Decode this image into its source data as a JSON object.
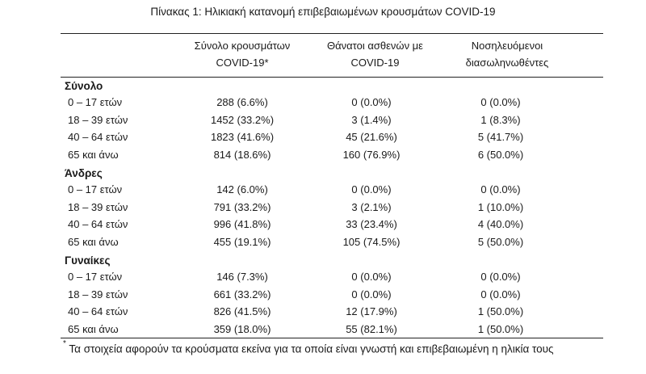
{
  "title": "Πίνακας 1: Ηλικιακή κατανομή επιβεβαιωμένων κρουσμάτων COVID-19",
  "columns": {
    "total": {
      "line1": "Σύνολο κρουσμάτων",
      "line2": "COVID-19*"
    },
    "deaths": {
      "line1": "Θάνατοι ασθενών με",
      "line2": "COVID-19"
    },
    "hospitalized": {
      "line1": "Νοσηλευόμενοι",
      "line2": "διασωληνωθέντες"
    }
  },
  "sections": [
    {
      "name": "Σύνολο",
      "rows": [
        {
          "age": "0 – 17 ετών",
          "total": "288 (6.6%)",
          "deaths": "0 (0.0%)",
          "hosp": "0 (0.0%)"
        },
        {
          "age": "18 – 39 ετών",
          "total": "1452 (33.2%)",
          "deaths": "3 (1.4%)",
          "hosp": "1 (8.3%)"
        },
        {
          "age": "40 – 64 ετών",
          "total": "1823 (41.6%)",
          "deaths": "45 (21.6%)",
          "hosp": "5 (41.7%)"
        },
        {
          "age": "65 και άνω",
          "total": "814 (18.6%)",
          "deaths": "160 (76.9%)",
          "hosp": "6 (50.0%)"
        }
      ]
    },
    {
      "name": "Άνδρες",
      "rows": [
        {
          "age": "0 – 17 ετών",
          "total": "142 (6.0%)",
          "deaths": "0 (0.0%)",
          "hosp": "0 (0.0%)"
        },
        {
          "age": "18 – 39 ετών",
          "total": "791 (33.2%)",
          "deaths": "3 (2.1%)",
          "hosp": "1 (10.0%)"
        },
        {
          "age": "40 – 64 ετών",
          "total": "996 (41.8%)",
          "deaths": "33 (23.4%)",
          "hosp": "4 (40.0%)"
        },
        {
          "age": "65 και άνω",
          "total": "455 (19.1%)",
          "deaths": "105 (74.5%)",
          "hosp": "5 (50.0%)"
        }
      ]
    },
    {
      "name": "Γυναίκες",
      "rows": [
        {
          "age": "0 – 17 ετών",
          "total": "146 (7.3%)",
          "deaths": "0 (0.0%)",
          "hosp": "0 (0.0%)"
        },
        {
          "age": "18 – 39 ετών",
          "total": "661 (33.2%)",
          "deaths": "0 (0.0%)",
          "hosp": "0 (0.0%)"
        },
        {
          "age": "40 – 64 ετών",
          "total": "826 (41.5%)",
          "deaths": "12 (17.9%)",
          "hosp": "1 (50.0%)"
        },
        {
          "age": "65 και άνω",
          "total": "359 (18.0%)",
          "deaths": "55 (82.1%)",
          "hosp": "1 (50.0%)"
        }
      ]
    }
  ],
  "footnote": {
    "marker": "*",
    "text": "Τα στοιχεία αφορούν τα κρούσματα εκείνα για τα οποία είναι γνωστή και επιβεβαιωμένη η ηλικία τους"
  }
}
